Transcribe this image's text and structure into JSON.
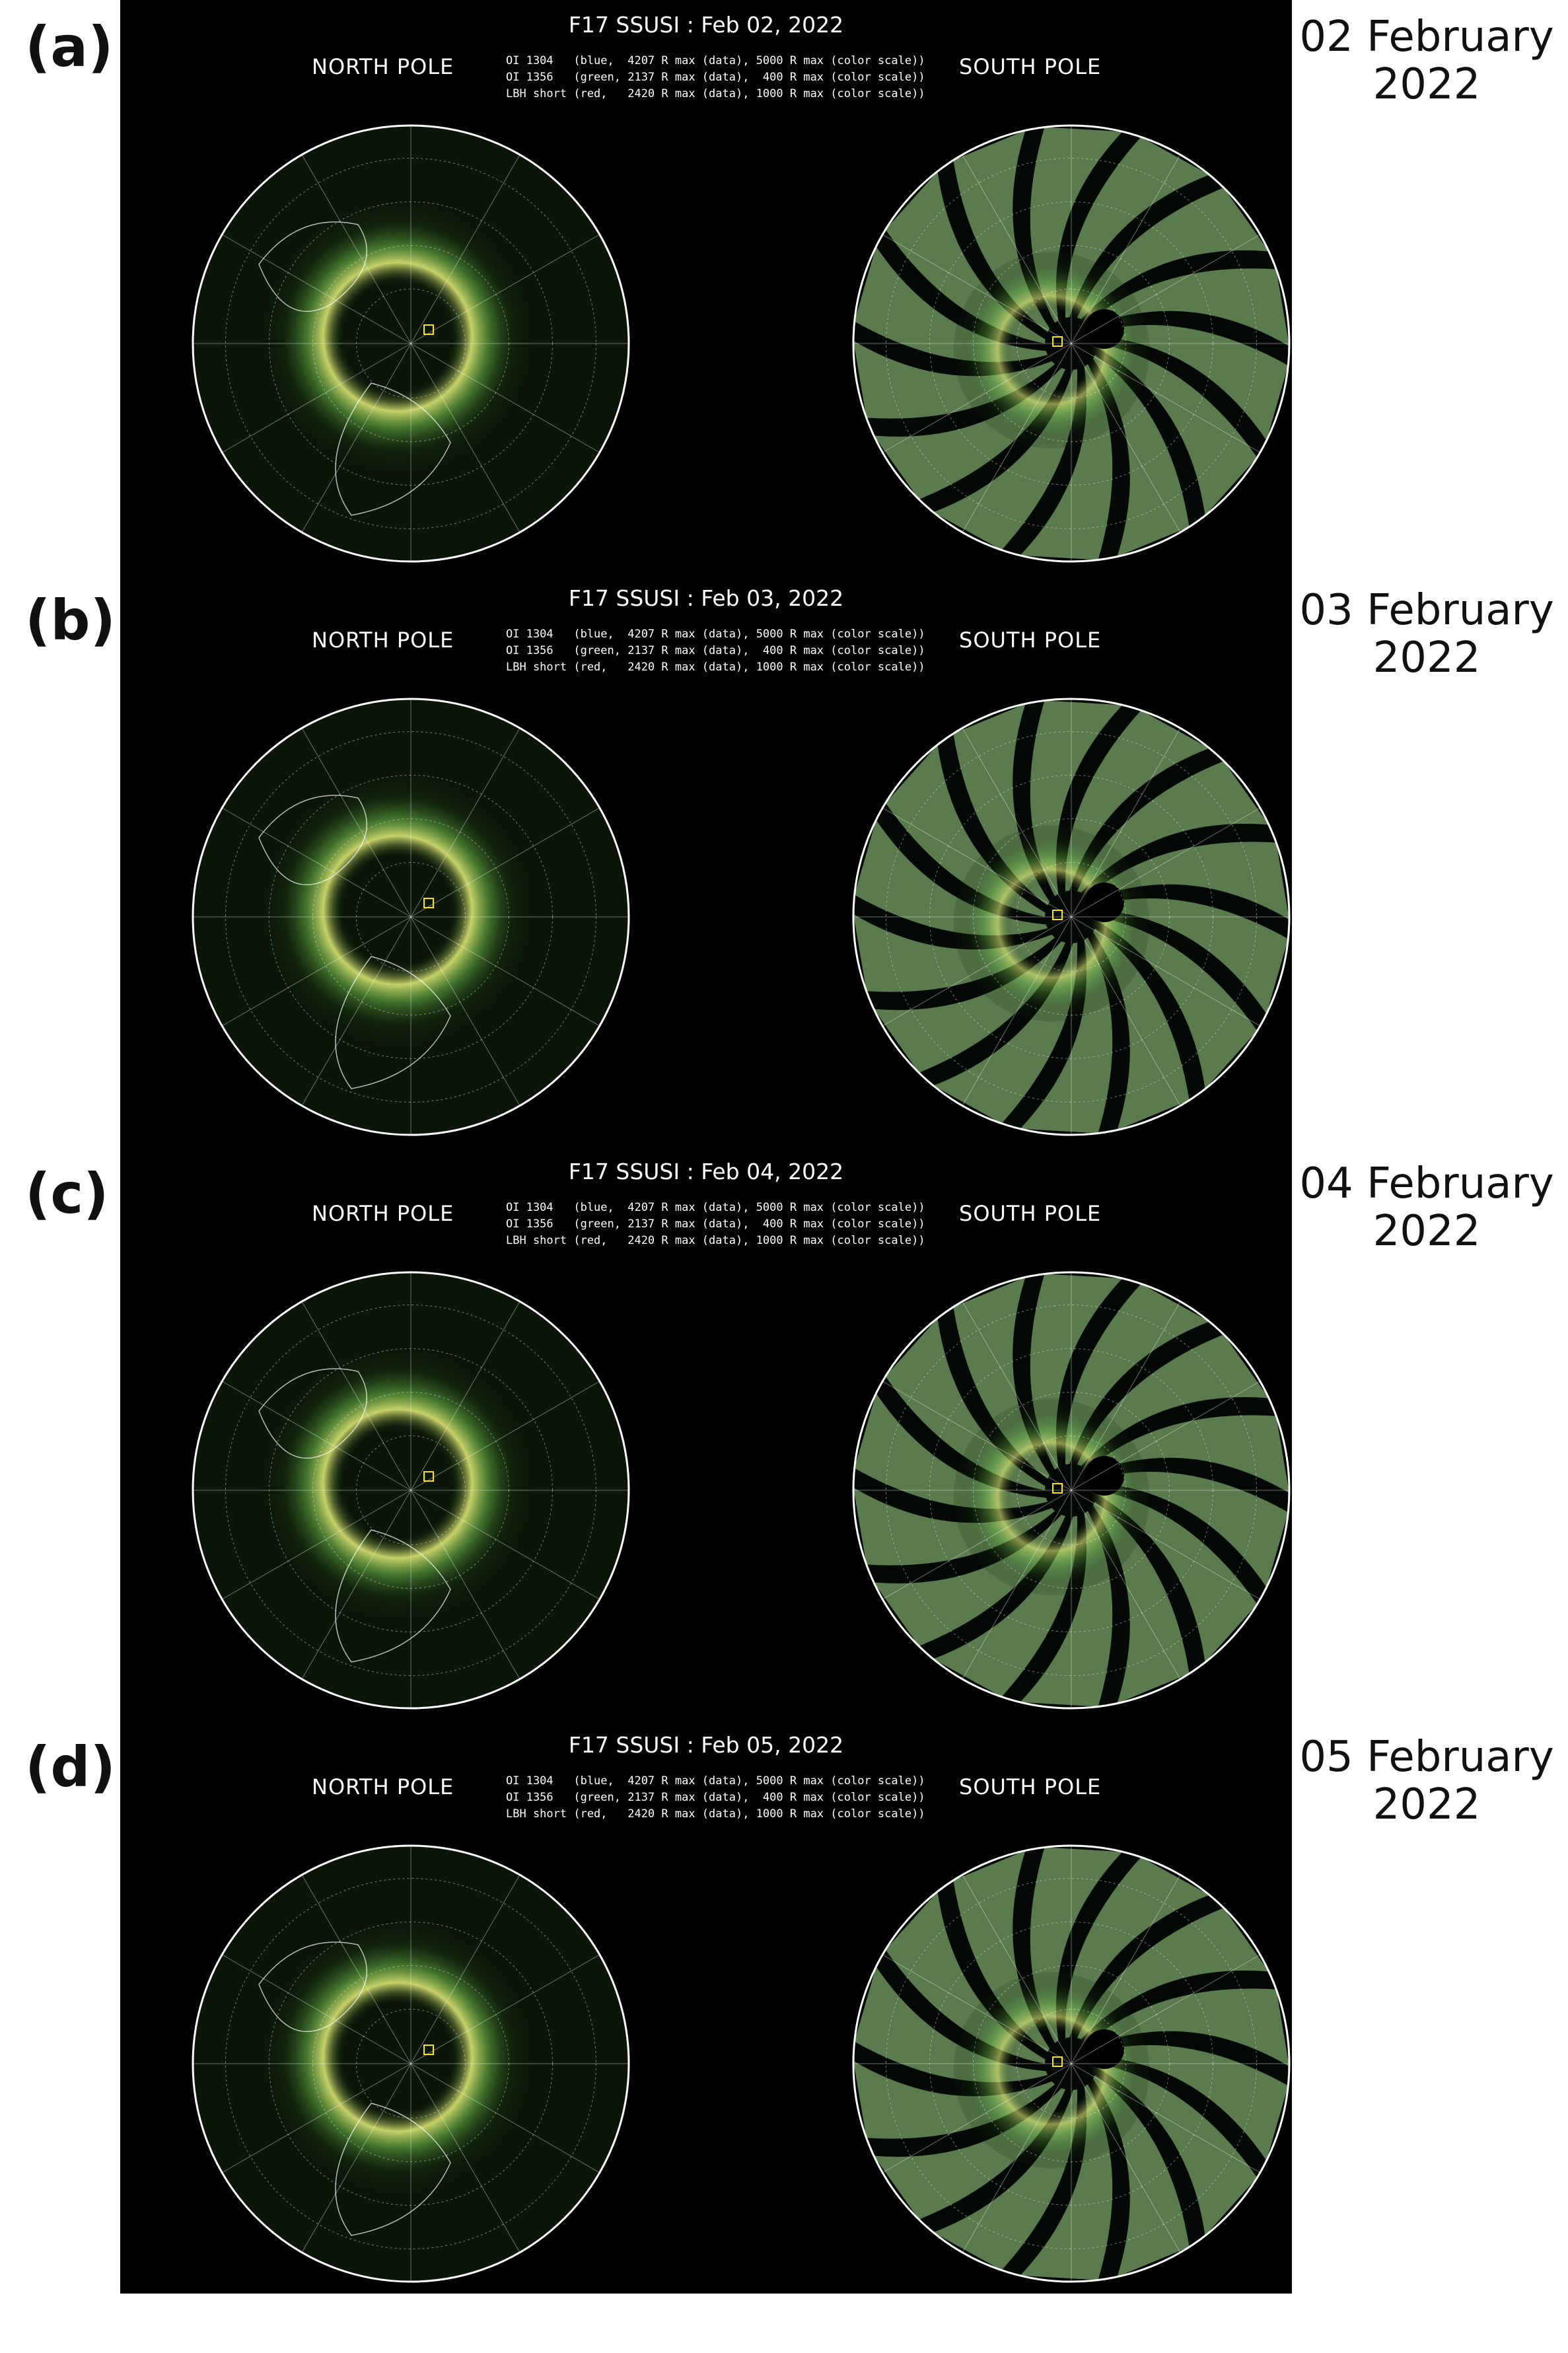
{
  "panels": [
    {
      "label": "(a)",
      "date_line1": "02 February",
      "date_line2": "2022",
      "title": "F17 SSUSI : Feb 02, 2022",
      "north_label": "NORTH POLE",
      "south_label": "SOUTH POLE",
      "legend": [
        "OI 1304   (blue,  4207 R max (data), 5000 R max (color scale))",
        "OI 1356   (green, 2137 R max (data),  400 R max (color scale))",
        "LBH short (red,   2420 R max (data), 1000 R max (color scale))"
      ]
    },
    {
      "label": "(b)",
      "date_line1": "03 February",
      "date_line2": "2022",
      "title": "F17 SSUSI : Feb 03, 2022",
      "north_label": "NORTH POLE",
      "south_label": "SOUTH POLE",
      "legend": [
        "OI 1304   (blue,  4207 R max (data), 5000 R max (color scale))",
        "OI 1356   (green, 2137 R max (data),  400 R max (color scale))",
        "LBH short (red,   2420 R max (data), 1000 R max (color scale))"
      ]
    },
    {
      "label": "(c)",
      "date_line1": "04 February",
      "date_line2": "2022",
      "title": "F17 SSUSI : Feb 04, 2022",
      "north_label": "NORTH POLE",
      "south_label": "SOUTH POLE",
      "legend": [
        "OI 1304   (blue,  4207 R max (data), 5000 R max (color scale))",
        "OI 1356   (green, 2137 R max (data),  400 R max (color scale))",
        "LBH short (red,   2420 R max (data), 1000 R max (color scale))"
      ]
    },
    {
      "label": "(d)",
      "date_line1": "05 February",
      "date_line2": "2022",
      "title": "F17 SSUSI : Feb 05, 2022",
      "north_label": "NORTH POLE",
      "south_label": "SOUTH POLE",
      "legend": [
        "OI 1304   (blue,  4207 R max (data), 5000 R max (color scale))",
        "OI 1356   (green, 2137 R max (data),  400 R max (color scale))",
        "LBH short (red,   2420 R max (data), 1000 R max (color scale))"
      ]
    }
  ],
  "colors": {
    "background": "#000000",
    "aurora_green": "#6fbf4a",
    "aurora_yellow": "#e8f27a",
    "swath_green": "#9fd98a",
    "grid_white": "#ffffff",
    "marker_yellow": "#ffe600"
  }
}
